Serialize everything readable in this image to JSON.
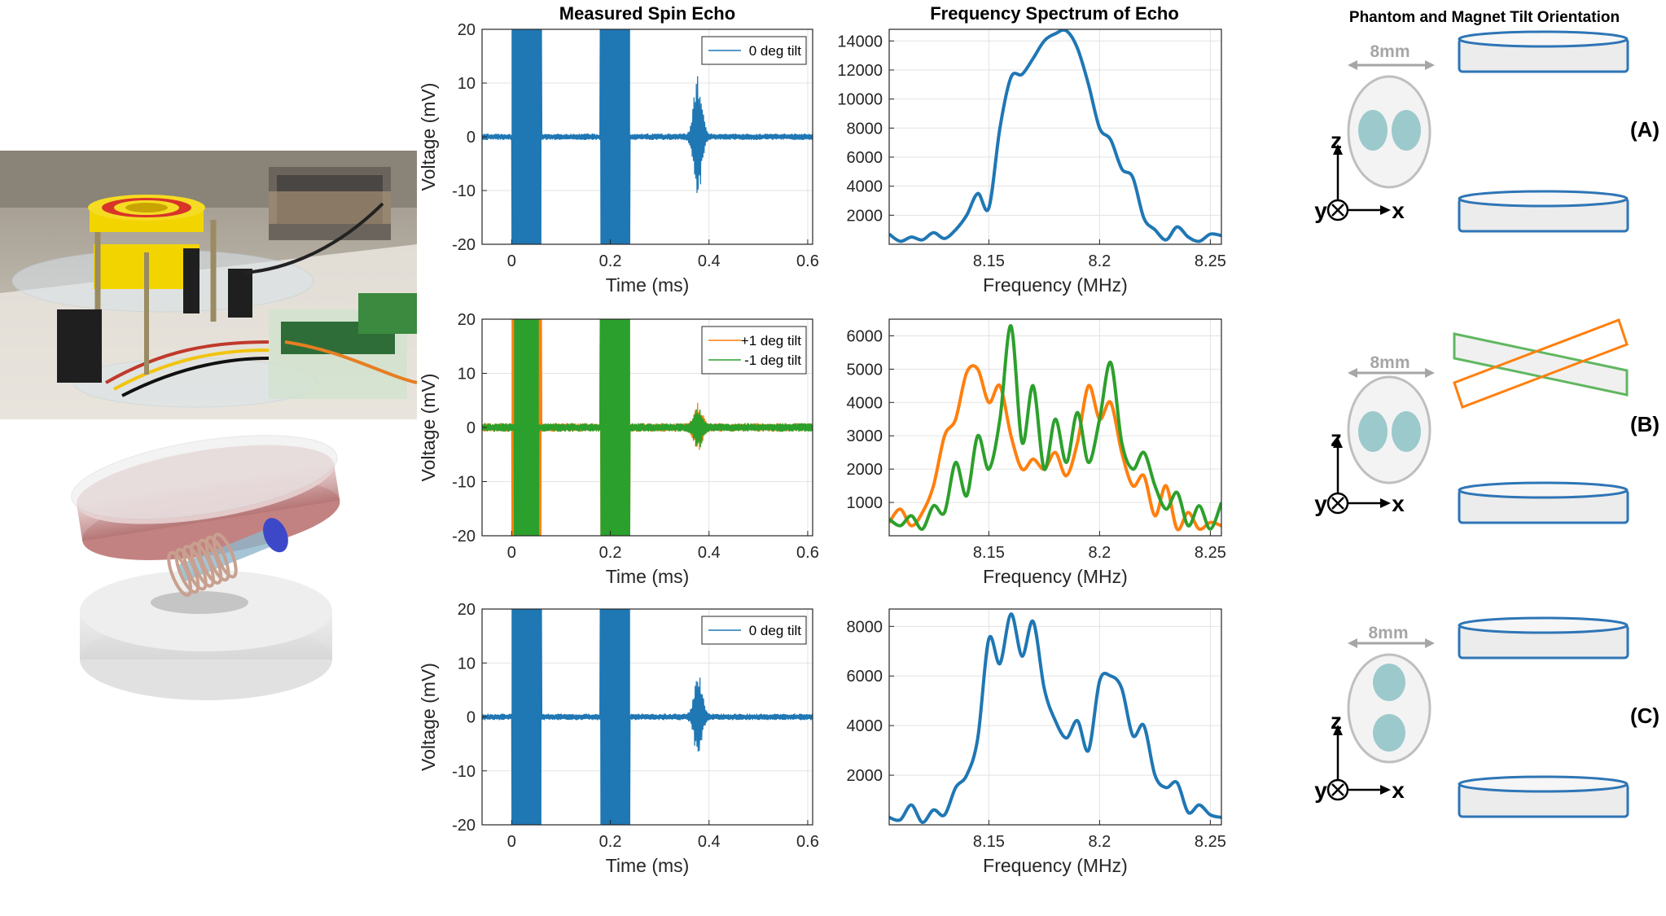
{
  "headers": {
    "echo": "Measured Spin Echo",
    "spectrum": "Frequency Spectrum of Echo",
    "orientation": "Phantom and Magnet Tilt Orientation"
  },
  "colors": {
    "blue": "#1f77b4",
    "orange": "#ff7f0e",
    "green": "#2ca02c",
    "grid": "#e3e3e3",
    "magnet_outline": "#2e75b6",
    "magnet_fill": "#ececec",
    "phantom_fill": "#9cc9cb"
  },
  "orientation": {
    "width_label": "8mm",
    "axes": {
      "z": "z",
      "y": "y",
      "x": "x"
    },
    "panels": [
      "(A)",
      "(B)",
      "(C)"
    ]
  },
  "chart_data": [
    {
      "type": "line",
      "id": "echo-A",
      "xlabel": "Time (ms)",
      "ylabel": "Voltage (mV)",
      "xlim": [
        -0.06,
        0.61
      ],
      "ylim": [
        -20,
        20
      ],
      "xticks": [
        0,
        0.2,
        0.4,
        0.6
      ],
      "yticks": [
        -20,
        -10,
        0,
        10,
        20
      ],
      "grid": true,
      "legend": "top-right",
      "series": [
        {
          "name": "0 deg tilt",
          "color": "#1f77b4",
          "pulses": [
            [
              0,
              0.06
            ],
            [
              0.18,
              0.24
            ]
          ],
          "echo_center": 0.377,
          "echo_amp": 12,
          "noise_amp": 0.6
        }
      ]
    },
    {
      "type": "line",
      "id": "spectrum-A",
      "xlabel": "Frequency (MHz)",
      "ylabel": "",
      "xlim": [
        8.105,
        8.255
      ],
      "ylim": [
        0,
        14800
      ],
      "xticks": [
        8.15,
        8.2,
        8.25
      ],
      "yticks": [
        2000,
        4000,
        6000,
        8000,
        10000,
        12000,
        14000
      ],
      "grid": true,
      "series": [
        {
          "name": "",
          "color": "#1f77b4",
          "x": [
            8.105,
            8.11,
            8.115,
            8.12,
            8.125,
            8.13,
            8.135,
            8.14,
            8.145,
            8.15,
            8.155,
            8.16,
            8.165,
            8.17,
            8.175,
            8.18,
            8.185,
            8.19,
            8.195,
            8.2,
            8.205,
            8.21,
            8.215,
            8.22,
            8.225,
            8.23,
            8.235,
            8.24,
            8.245,
            8.25,
            8.255
          ],
          "y": [
            700,
            200,
            500,
            300,
            800,
            400,
            1000,
            2000,
            3500,
            2500,
            8000,
            11500,
            11700,
            12800,
            14000,
            14500,
            14700,
            13500,
            11000,
            8000,
            7200,
            5200,
            4600,
            1800,
            1000,
            300,
            1200,
            500,
            200,
            700,
            600
          ]
        }
      ]
    },
    {
      "type": "line",
      "id": "echo-B",
      "xlabel": "Time (ms)",
      "ylabel": "Voltage (mV)",
      "xlim": [
        -0.06,
        0.61
      ],
      "ylim": [
        -20,
        20
      ],
      "xticks": [
        0,
        0.2,
        0.4,
        0.6
      ],
      "yticks": [
        -20,
        -10,
        0,
        10,
        20
      ],
      "grid": true,
      "legend": "top-right",
      "series": [
        {
          "name": "+1 deg tilt",
          "color": "#ff7f0e",
          "pulses": [
            [
              0,
              0.06
            ],
            [
              0.18,
              0.24
            ]
          ],
          "echo_center": 0.378,
          "echo_amp": 4,
          "noise_amp": 0.8
        },
        {
          "name": "-1 deg tilt",
          "color": "#2ca02c",
          "pulses": [
            [
              0.005,
              0.055
            ],
            [
              0.18,
              0.24
            ]
          ],
          "echo_center": 0.378,
          "echo_amp": 3.5,
          "noise_amp": 0.8
        }
      ]
    },
    {
      "type": "line",
      "id": "spectrum-B",
      "xlabel": "Frequency (MHz)",
      "ylabel": "",
      "xlim": [
        8.105,
        8.255
      ],
      "ylim": [
        0,
        6500
      ],
      "xticks": [
        8.15,
        8.2,
        8.25
      ],
      "yticks": [
        1000,
        2000,
        3000,
        4000,
        5000,
        6000
      ],
      "grid": true,
      "series": [
        {
          "name": "",
          "color": "#ff7f0e",
          "x": [
            8.105,
            8.11,
            8.115,
            8.12,
            8.125,
            8.13,
            8.135,
            8.14,
            8.145,
            8.15,
            8.155,
            8.16,
            8.165,
            8.17,
            8.175,
            8.18,
            8.185,
            8.19,
            8.195,
            8.2,
            8.205,
            8.21,
            8.215,
            8.22,
            8.225,
            8.23,
            8.235,
            8.24,
            8.245,
            8.25,
            8.255
          ],
          "y": [
            400,
            800,
            300,
            700,
            1500,
            3000,
            3500,
            4900,
            5000,
            4000,
            4500,
            3000,
            2000,
            2300,
            2000,
            2500,
            1800,
            2800,
            4500,
            3500,
            4000,
            2500,
            1500,
            1800,
            600,
            1500,
            200,
            700,
            200,
            400,
            300
          ]
        },
        {
          "name": "",
          "color": "#2ca02c",
          "x": [
            8.105,
            8.11,
            8.115,
            8.12,
            8.125,
            8.13,
            8.135,
            8.14,
            8.145,
            8.15,
            8.155,
            8.16,
            8.165,
            8.17,
            8.175,
            8.18,
            8.185,
            8.19,
            8.195,
            8.2,
            8.205,
            8.21,
            8.215,
            8.22,
            8.225,
            8.23,
            8.235,
            8.24,
            8.245,
            8.25,
            8.255
          ],
          "y": [
            500,
            300,
            600,
            200,
            900,
            700,
            2200,
            1200,
            3000,
            2000,
            3500,
            6300,
            2800,
            4500,
            2000,
            3500,
            2200,
            3700,
            2200,
            3500,
            5200,
            2800,
            2000,
            2500,
            1500,
            800,
            1300,
            300,
            900,
            200,
            1000
          ]
        }
      ]
    },
    {
      "type": "line",
      "id": "echo-C",
      "xlabel": "Time (ms)",
      "ylabel": "Voltage (mV)",
      "xlim": [
        -0.06,
        0.61
      ],
      "ylim": [
        -20,
        20
      ],
      "xticks": [
        0,
        0.2,
        0.4,
        0.6
      ],
      "yticks": [
        -20,
        -10,
        0,
        10,
        20
      ],
      "grid": true,
      "legend": "top-right",
      "series": [
        {
          "name": "0 deg tilt",
          "color": "#1f77b4",
          "pulses": [
            [
              0,
              0.06
            ],
            [
              0.18,
              0.24
            ]
          ],
          "echo_center": 0.378,
          "echo_amp": 7.5,
          "noise_amp": 0.6
        }
      ]
    },
    {
      "type": "line",
      "id": "spectrum-C",
      "xlabel": "Frequency (MHz)",
      "ylabel": "",
      "xlim": [
        8.105,
        8.255
      ],
      "ylim": [
        0,
        8700
      ],
      "xticks": [
        8.15,
        8.2,
        8.25
      ],
      "yticks": [
        2000,
        4000,
        6000,
        8000
      ],
      "grid": true,
      "series": [
        {
          "name": "",
          "color": "#1f77b4",
          "x": [
            8.105,
            8.11,
            8.115,
            8.12,
            8.125,
            8.13,
            8.135,
            8.14,
            8.145,
            8.15,
            8.155,
            8.16,
            8.165,
            8.17,
            8.175,
            8.18,
            8.185,
            8.19,
            8.195,
            8.2,
            8.205,
            8.21,
            8.215,
            8.22,
            8.225,
            8.23,
            8.235,
            8.24,
            8.245,
            8.25,
            8.255
          ],
          "y": [
            300,
            200,
            800,
            100,
            600,
            400,
            1500,
            2000,
            3500,
            7500,
            6500,
            8500,
            6800,
            8200,
            5500,
            4200,
            3500,
            4200,
            3000,
            5800,
            6000,
            5500,
            3600,
            4000,
            2000,
            1500,
            1700,
            500,
            800,
            400,
            300
          ]
        }
      ]
    }
  ]
}
